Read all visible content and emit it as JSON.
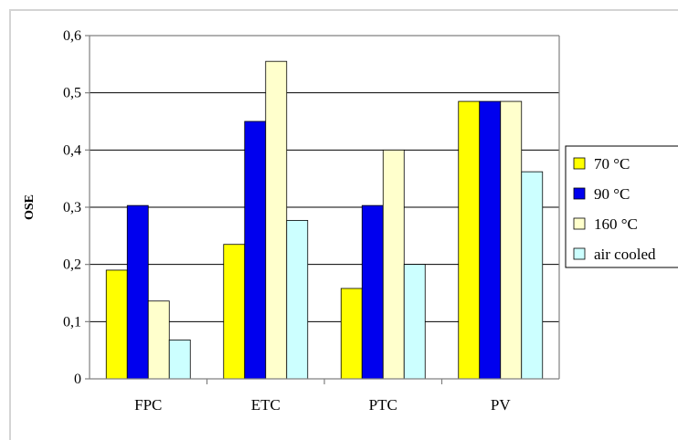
{
  "chart_data": {
    "type": "bar",
    "title": "",
    "xlabel": "",
    "ylabel": "OSE",
    "categories": [
      "FPC",
      "ETC",
      "PTC",
      "PV"
    ],
    "series": [
      {
        "name": "70 °C",
        "color": "#ffff00",
        "values": [
          0.19,
          0.235,
          0.158,
          0.485
        ]
      },
      {
        "name": "90 °C",
        "color": "#0000ee",
        "values": [
          0.303,
          0.45,
          0.303,
          0.485
        ]
      },
      {
        "name": "160 °C",
        "color": "#ffffcc",
        "values": [
          0.136,
          0.555,
          0.4,
          0.485
        ]
      },
      {
        "name": "air cooled",
        "color": "#ccffff",
        "values": [
          0.068,
          0.277,
          0.2,
          0.362
        ]
      }
    ],
    "ylim": [
      0,
      0.6
    ],
    "yticks": [
      "0",
      "0,1",
      "0,2",
      "0,3",
      "0,4",
      "0,5",
      "0,6"
    ],
    "grid": true,
    "legend_position": "right"
  }
}
